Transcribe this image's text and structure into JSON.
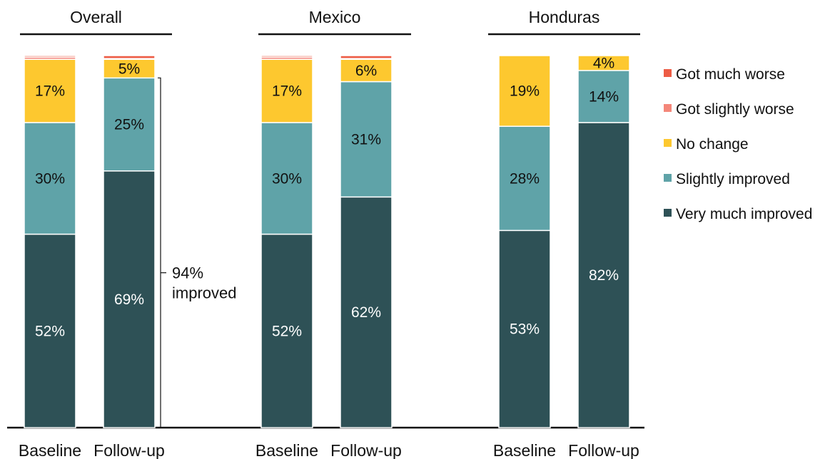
{
  "chart_data": {
    "type": "bar",
    "stacked": true,
    "groups": [
      {
        "title": "Overall",
        "categories": [
          "Baseline",
          "Follow-up"
        ],
        "series": [
          {
            "name": "Very much improved",
            "values": [
              52,
              69
            ],
            "labels": [
              "52%",
              "69%"
            ]
          },
          {
            "name": "Slightly improved",
            "values": [
              30,
              25
            ],
            "labels": [
              "30%",
              "25%"
            ]
          },
          {
            "name": "No change",
            "values": [
              17,
              5
            ],
            "labels": [
              "17%",
              "5%"
            ]
          },
          {
            "name": "Got slightly worse",
            "values": [
              0.6,
              0.2
            ],
            "labels": [
              "",
              ""
            ]
          },
          {
            "name": "Got much worse",
            "values": [
              0.4,
              0.8
            ],
            "labels": [
              "",
              ""
            ]
          }
        ]
      },
      {
        "title": "Mexico",
        "categories": [
          "Baseline",
          "Follow-up"
        ],
        "series": [
          {
            "name": "Very much improved",
            "values": [
              52,
              62
            ],
            "labels": [
              "52%",
              "62%"
            ]
          },
          {
            "name": "Slightly improved",
            "values": [
              30,
              31
            ],
            "labels": [
              "30%",
              "31%"
            ]
          },
          {
            "name": "No change",
            "values": [
              17,
              6
            ],
            "labels": [
              "17%",
              "6%"
            ]
          },
          {
            "name": "Got slightly worse",
            "values": [
              0.6,
              0.2
            ],
            "labels": [
              "",
              ""
            ]
          },
          {
            "name": "Got much worse",
            "values": [
              0.4,
              0.8
            ],
            "labels": [
              "",
              ""
            ]
          }
        ]
      },
      {
        "title": "Honduras",
        "categories": [
          "Baseline",
          "Follow-up"
        ],
        "series": [
          {
            "name": "Very much improved",
            "values": [
              53,
              82
            ],
            "labels": [
              "53%",
              "82%"
            ]
          },
          {
            "name": "Slightly improved",
            "values": [
              28,
              14
            ],
            "labels": [
              "28%",
              "14%"
            ]
          },
          {
            "name": "No change",
            "values": [
              19,
              4
            ],
            "labels": [
              "19%",
              "4%"
            ]
          },
          {
            "name": "Got slightly worse",
            "values": [
              0,
              0
            ],
            "labels": [
              "",
              ""
            ]
          },
          {
            "name": "Got much worse",
            "values": [
              0,
              0
            ],
            "labels": [
              "",
              ""
            ]
          }
        ]
      }
    ],
    "legend": {
      "position": "right",
      "entries": [
        "Got much worse",
        "Got slightly worse",
        "No change",
        "Slightly improved",
        "Very much improved"
      ]
    },
    "colors": {
      "Very much improved": "#2e5156",
      "Slightly improved": "#5fa3a8",
      "No change": "#fdc82f",
      "Got slightly worse": "#f4877a",
      "Got much worse": "#ed5c45"
    },
    "label_colors": {
      "Very much improved": "#ffffff",
      "Slightly improved": "#111111",
      "No change": "#111111"
    },
    "annotation": {
      "lines": [
        "94%",
        "improved"
      ],
      "group": "Overall",
      "bar": "Follow-up"
    },
    "ylim": [
      0,
      100
    ],
    "grid": false
  }
}
